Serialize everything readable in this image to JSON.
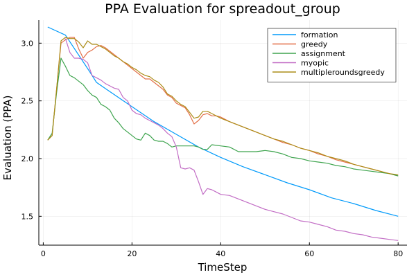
{
  "chart_data": {
    "type": "line",
    "title": "PPA Evaluation for spreadout_group",
    "xlabel": "TimeStep",
    "ylabel": "Evaluation (PPA)",
    "xlim": [
      -1,
      82
    ],
    "ylim": [
      1.25,
      3.2
    ],
    "xticks": [
      0,
      20,
      40,
      60,
      80
    ],
    "yticks": [
      1.5,
      2.0,
      2.5,
      3.0
    ],
    "xtick_labels": [
      "0",
      "20",
      "40",
      "60",
      "80"
    ],
    "ytick_labels": [
      "1.5",
      "2.0",
      "2.5",
      "3.0"
    ],
    "grid": true,
    "legend_position": "top-right",
    "series": [
      {
        "name": "formation",
        "color": "#009AFA",
        "x": [
          1,
          5,
          10,
          12,
          15,
          20,
          25,
          30,
          35,
          40,
          45,
          50,
          55,
          60,
          65,
          70,
          75,
          80
        ],
        "y": [
          3.14,
          3.07,
          2.78,
          2.66,
          2.58,
          2.45,
          2.32,
          2.21,
          2.1,
          2.01,
          1.93,
          1.86,
          1.79,
          1.73,
          1.66,
          1.61,
          1.55,
          1.5
        ]
      },
      {
        "name": "greedy",
        "color": "#E36F47",
        "x": [
          1,
          2,
          3,
          4,
          5,
          6,
          7,
          8,
          9,
          10,
          11,
          12,
          13,
          14,
          15,
          16,
          17,
          18,
          19,
          20,
          21,
          22,
          23,
          24,
          25,
          26,
          27,
          28,
          29,
          30,
          31,
          32,
          33,
          34,
          35,
          36,
          37,
          38,
          39,
          40,
          42,
          44,
          46,
          48,
          50,
          52,
          54,
          56,
          58,
          60,
          62,
          64,
          66,
          68,
          70,
          72,
          74,
          76,
          78,
          80
        ],
        "y": [
          2.16,
          2.2,
          2.6,
          3.0,
          3.03,
          3.05,
          3.05,
          2.95,
          2.87,
          2.92,
          2.94,
          2.97,
          2.98,
          2.96,
          2.93,
          2.9,
          2.87,
          2.84,
          2.81,
          2.78,
          2.75,
          2.72,
          2.69,
          2.69,
          2.66,
          2.63,
          2.6,
          2.55,
          2.53,
          2.48,
          2.46,
          2.44,
          2.38,
          2.3,
          2.33,
          2.38,
          2.39,
          2.37,
          2.37,
          2.36,
          2.32,
          2.29,
          2.26,
          2.23,
          2.2,
          2.17,
          2.14,
          2.12,
          2.09,
          2.07,
          2.04,
          2.02,
          1.99,
          1.97,
          1.95,
          1.93,
          1.91,
          1.89,
          1.87,
          1.85
        ]
      },
      {
        "name": "assignment",
        "color": "#3EA44E",
        "x": [
          1,
          2,
          3,
          4,
          5,
          6,
          7,
          8,
          9,
          10,
          11,
          12,
          13,
          14,
          15,
          16,
          17,
          18,
          19,
          20,
          21,
          22,
          23,
          24,
          25,
          26,
          27,
          28,
          29,
          30,
          32,
          34,
          35,
          36,
          37,
          38,
          40,
          42,
          44,
          46,
          48,
          50,
          52,
          54,
          56,
          58,
          60,
          62,
          64,
          66,
          68,
          70,
          72,
          74,
          76,
          78,
          80
        ],
        "y": [
          2.16,
          2.22,
          2.57,
          2.87,
          2.8,
          2.72,
          2.7,
          2.67,
          2.64,
          2.59,
          2.55,
          2.53,
          2.47,
          2.45,
          2.42,
          2.35,
          2.31,
          2.26,
          2.23,
          2.2,
          2.17,
          2.16,
          2.22,
          2.2,
          2.16,
          2.15,
          2.15,
          2.13,
          2.1,
          2.11,
          2.11,
          2.11,
          2.1,
          2.08,
          2.08,
          2.12,
          2.11,
          2.1,
          2.06,
          2.06,
          2.06,
          2.07,
          2.06,
          2.04,
          2.01,
          2.0,
          1.98,
          1.97,
          1.96,
          1.94,
          1.93,
          1.91,
          1.9,
          1.89,
          1.88,
          1.87,
          1.85
        ]
      },
      {
        "name": "myopic",
        "color": "#C26DC5",
        "x": [
          5,
          6,
          7,
          8,
          9,
          10,
          11,
          12,
          13,
          14,
          15,
          16,
          17,
          18,
          19,
          20,
          21,
          22,
          23,
          24,
          25,
          26,
          27,
          28,
          29,
          30,
          31,
          32,
          33,
          34,
          35,
          36,
          37,
          38,
          39,
          40,
          42,
          44,
          46,
          48,
          50,
          52,
          54,
          56,
          58,
          60,
          62,
          64,
          66,
          68,
          70,
          72,
          74,
          76,
          78,
          80
        ],
        "y": [
          3.04,
          2.92,
          2.87,
          2.87,
          2.86,
          2.83,
          2.72,
          2.7,
          2.68,
          2.65,
          2.63,
          2.61,
          2.6,
          2.53,
          2.5,
          2.42,
          2.39,
          2.38,
          2.35,
          2.33,
          2.31,
          2.29,
          2.26,
          2.22,
          2.19,
          2.1,
          1.92,
          1.91,
          1.92,
          1.9,
          1.8,
          1.69,
          1.74,
          1.73,
          1.71,
          1.69,
          1.68,
          1.65,
          1.62,
          1.59,
          1.56,
          1.54,
          1.52,
          1.49,
          1.46,
          1.45,
          1.43,
          1.41,
          1.38,
          1.37,
          1.35,
          1.34,
          1.32,
          1.31,
          1.3,
          1.29
        ]
      },
      {
        "name": "multipleroundsgreedy",
        "color": "#AC8D18",
        "x": [
          1,
          2,
          3,
          4,
          5,
          6,
          7,
          8,
          9,
          10,
          11,
          12,
          13,
          14,
          15,
          16,
          17,
          18,
          19,
          20,
          21,
          22,
          23,
          24,
          25,
          26,
          27,
          28,
          29,
          30,
          31,
          32,
          33,
          34,
          35,
          36,
          37,
          38,
          39,
          40,
          42,
          44,
          46,
          48,
          50,
          52,
          54,
          56,
          58,
          60,
          62,
          64,
          66,
          68,
          70,
          72,
          74,
          76,
          78,
          80
        ],
        "y": [
          2.16,
          2.2,
          2.6,
          3.02,
          3.05,
          3.04,
          3.04,
          3.01,
          2.96,
          3.02,
          2.99,
          2.99,
          2.97,
          2.95,
          2.92,
          2.89,
          2.87,
          2.84,
          2.82,
          2.79,
          2.77,
          2.74,
          2.72,
          2.71,
          2.68,
          2.66,
          2.62,
          2.56,
          2.54,
          2.5,
          2.47,
          2.45,
          2.4,
          2.35,
          2.36,
          2.41,
          2.41,
          2.39,
          2.37,
          2.35,
          2.32,
          2.29,
          2.26,
          2.23,
          2.2,
          2.17,
          2.15,
          2.12,
          2.09,
          2.07,
          2.05,
          2.02,
          2.0,
          1.98,
          1.95,
          1.93,
          1.91,
          1.89,
          1.87,
          1.86
        ]
      }
    ]
  }
}
